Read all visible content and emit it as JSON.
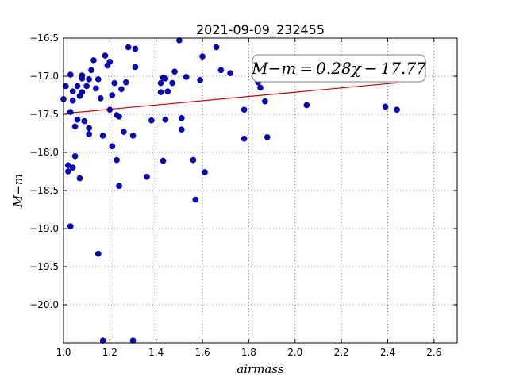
{
  "chart_data": {
    "type": "scatter",
    "title": "2021-09-09_232455",
    "xlabel": "airmass",
    "ylabel": "M−m",
    "xlim": [
      1.0,
      2.7
    ],
    "ylim": [
      -16.5,
      -20.5
    ],
    "y_inverted": true,
    "grid": true,
    "xticks": [
      1.0,
      1.2,
      1.4,
      1.6,
      1.8,
      2.0,
      2.2,
      2.4,
      2.6
    ],
    "xtick_labels": [
      "1.0",
      "1.2",
      "1.4",
      "1.6",
      "1.8",
      "2.0",
      "2.2",
      "2.4",
      "2.6"
    ],
    "yticks": [
      -16.5,
      -17.0,
      -17.5,
      -18.0,
      -18.5,
      -19.0,
      -19.5,
      -20.0
    ],
    "ytick_labels": [
      "−16.5",
      "−17.0",
      "−17.5",
      "−18.0",
      "−18.5",
      "−19.0",
      "−19.5",
      "−20.0"
    ],
    "annotation": "M−m = 0.28χ − 17.77",
    "fit": {
      "slope": 0.28,
      "intercept": -17.77,
      "x_range": [
        1.0,
        2.44
      ],
      "color": "#cc0000"
    },
    "point_color": "#0000cc",
    "points": [
      [
        1.0,
        -17.3
      ],
      [
        1.01,
        -17.13
      ],
      [
        1.02,
        -18.17
      ],
      [
        1.02,
        -18.25
      ],
      [
        1.03,
        -17.47
      ],
      [
        1.03,
        -16.98
      ],
      [
        1.03,
        -18.97
      ],
      [
        1.04,
        -17.2
      ],
      [
        1.04,
        -18.2
      ],
      [
        1.04,
        -17.32
      ],
      [
        1.05,
        -17.66
      ],
      [
        1.05,
        -18.05
      ],
      [
        1.06,
        -17.13
      ],
      [
        1.06,
        -17.57
      ],
      [
        1.07,
        -17.26
      ],
      [
        1.07,
        -18.34
      ],
      [
        1.08,
        -16.99
      ],
      [
        1.08,
        -17.03
      ],
      [
        1.08,
        -17.21
      ],
      [
        1.09,
        -17.59
      ],
      [
        1.1,
        -17.13
      ],
      [
        1.11,
        -17.68
      ],
      [
        1.11,
        -17.76
      ],
      [
        1.11,
        -17.04
      ],
      [
        1.12,
        -16.92
      ],
      [
        1.13,
        -16.79
      ],
      [
        1.14,
        -17.16
      ],
      [
        1.15,
        -17.04
      ],
      [
        1.15,
        -19.33
      ],
      [
        1.16,
        -17.29
      ],
      [
        1.17,
        -20.47
      ],
      [
        1.17,
        -17.78
      ],
      [
        1.18,
        -16.73
      ],
      [
        1.19,
        -16.86
      ],
      [
        1.2,
        -16.81
      ],
      [
        1.2,
        -17.44
      ],
      [
        1.21,
        -17.25
      ],
      [
        1.21,
        -17.92
      ],
      [
        1.22,
        -17.09
      ],
      [
        1.23,
        -18.1
      ],
      [
        1.23,
        -17.51
      ],
      [
        1.24,
        -17.53
      ],
      [
        1.24,
        -18.44
      ],
      [
        1.25,
        -17.17
      ],
      [
        1.26,
        -17.73
      ],
      [
        1.27,
        -17.08
      ],
      [
        1.28,
        -16.62
      ],
      [
        1.3,
        -17.78
      ],
      [
        1.3,
        -20.47
      ],
      [
        1.31,
        -16.64
      ],
      [
        1.31,
        -16.88
      ],
      [
        1.36,
        -18.32
      ],
      [
        1.38,
        -17.58
      ],
      [
        1.42,
        -17.21
      ],
      [
        1.42,
        -17.09
      ],
      [
        1.43,
        -18.11
      ],
      [
        1.43,
        -17.02
      ],
      [
        1.44,
        -17.03
      ],
      [
        1.44,
        -17.57
      ],
      [
        1.45,
        -17.2
      ],
      [
        1.47,
        -17.09
      ],
      [
        1.48,
        -16.94
      ],
      [
        1.5,
        -16.53
      ],
      [
        1.51,
        -17.55
      ],
      [
        1.51,
        -17.7
      ],
      [
        1.53,
        -17.01
      ],
      [
        1.56,
        -18.1
      ],
      [
        1.57,
        -18.62
      ],
      [
        1.59,
        -17.05
      ],
      [
        1.6,
        -16.74
      ],
      [
        1.61,
        -18.26
      ],
      [
        1.66,
        -16.62
      ],
      [
        1.68,
        -16.92
      ],
      [
        1.72,
        -16.96
      ],
      [
        1.78,
        -17.44
      ],
      [
        1.78,
        -17.82
      ],
      [
        1.84,
        -17.08
      ],
      [
        1.85,
        -17.15
      ],
      [
        1.87,
        -17.33
      ],
      [
        1.88,
        -17.8
      ],
      [
        2.05,
        -17.38
      ],
      [
        2.39,
        -17.4
      ],
      [
        2.44,
        -17.44
      ]
    ]
  }
}
